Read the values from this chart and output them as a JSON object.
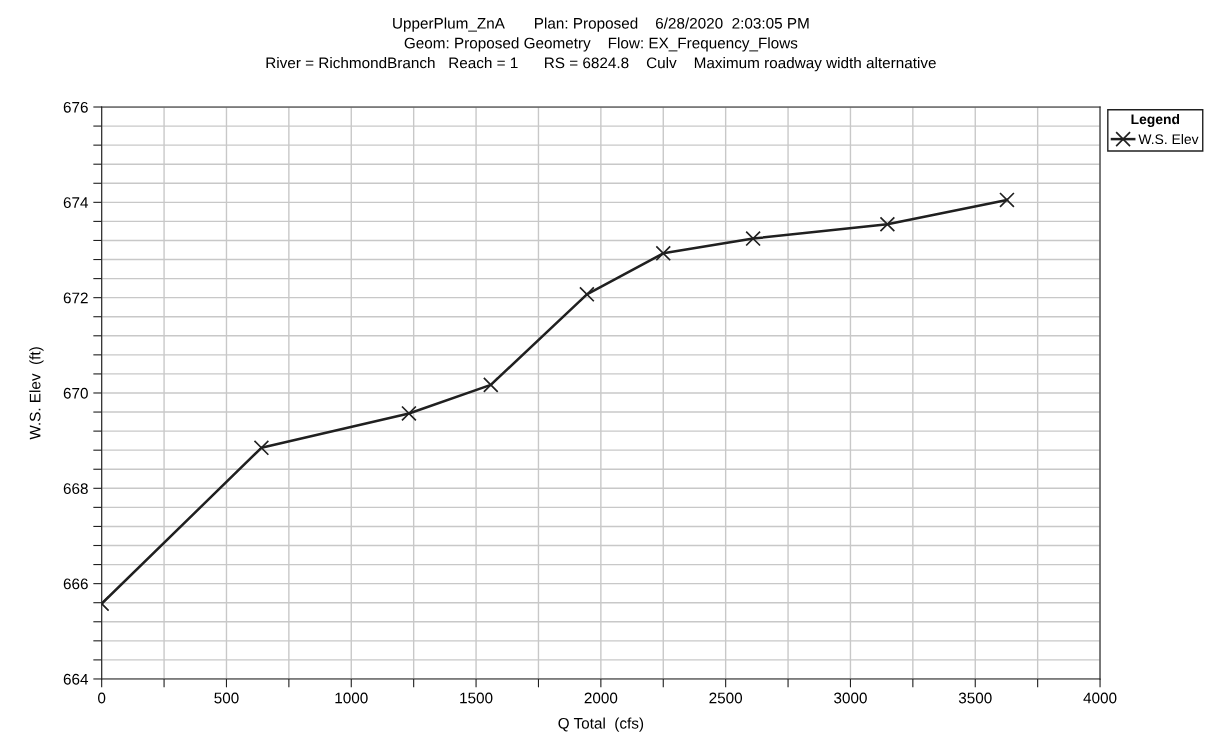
{
  "chart_data": {
    "type": "line",
    "title": "UpperPlum_ZnA       Plan: Proposed    6/28/2020  2:03:05 PM\nGeom: Proposed Geometry    Flow: EX_Frequency_Flows\nRiver = RichmondBranch   Reach = 1      RS = 6824.8    Culv    Maximum roadway width alternative",
    "xlabel": "Q Total  (cfs)",
    "ylabel": "W.S. Elev  (ft)",
    "legend_title": "Legend",
    "x": [
      0,
      640,
      1231,
      1559,
      1944,
      2250,
      2610,
      3148,
      3627
    ],
    "series": [
      {
        "name": "W.S. Elev",
        "color": "#202020",
        "values": [
          665.58,
          668.85,
          669.57,
          670.17,
          672.07,
          672.93,
          673.24,
          673.54,
          674.05
        ]
      }
    ],
    "xlim": [
      0,
      4000
    ],
    "ylim": [
      664,
      676
    ],
    "xticks": [
      0,
      {
        "value": 250,
        "label": null
      },
      500,
      {
        "value": 750,
        "label": null
      },
      1000,
      {
        "value": 1250,
        "label": null
      },
      1500,
      {
        "value": 1750,
        "label": null
      },
      2000,
      {
        "value": 2250,
        "label": null
      },
      2500,
      {
        "value": 2750,
        "label": null
      },
      3000,
      {
        "value": 3250,
        "label": null
      },
      3500,
      {
        "value": 3750,
        "label": null
      },
      4000
    ],
    "yticks": [
      664,
      {
        "value": 664.4,
        "label": null
      },
      {
        "value": 664.8,
        "label": null
      },
      {
        "value": 665.2,
        "label": null
      },
      {
        "value": 665.6,
        "label": null
      },
      666,
      {
        "value": 666.4,
        "label": null
      },
      {
        "value": 666.8,
        "label": null
      },
      {
        "value": 667.2,
        "label": null
      },
      {
        "value": 667.6,
        "label": null
      },
      668,
      {
        "value": 668.4,
        "label": null
      },
      {
        "value": 668.8,
        "label": null
      },
      {
        "value": 669.2,
        "label": null
      },
      {
        "value": 669.6,
        "label": null
      },
      670,
      {
        "value": 670.4,
        "label": null
      },
      {
        "value": 670.8,
        "label": null
      },
      {
        "value": 671.2,
        "label": null
      },
      {
        "value": 671.6,
        "label": null
      },
      672,
      {
        "value": 672.4,
        "label": null
      },
      {
        "value": 672.8,
        "label": null
      },
      {
        "value": 673.2,
        "label": null
      },
      {
        "value": 673.6,
        "label": null
      },
      674,
      {
        "value": 674.4,
        "label": null
      },
      {
        "value": 674.8,
        "label": null
      },
      {
        "value": 675.2,
        "label": null
      },
      {
        "value": 675.6,
        "label": null
      },
      676
    ],
    "grid": true,
    "legend": "top right",
    "marker": "cross",
    "line_style": "solid"
  }
}
